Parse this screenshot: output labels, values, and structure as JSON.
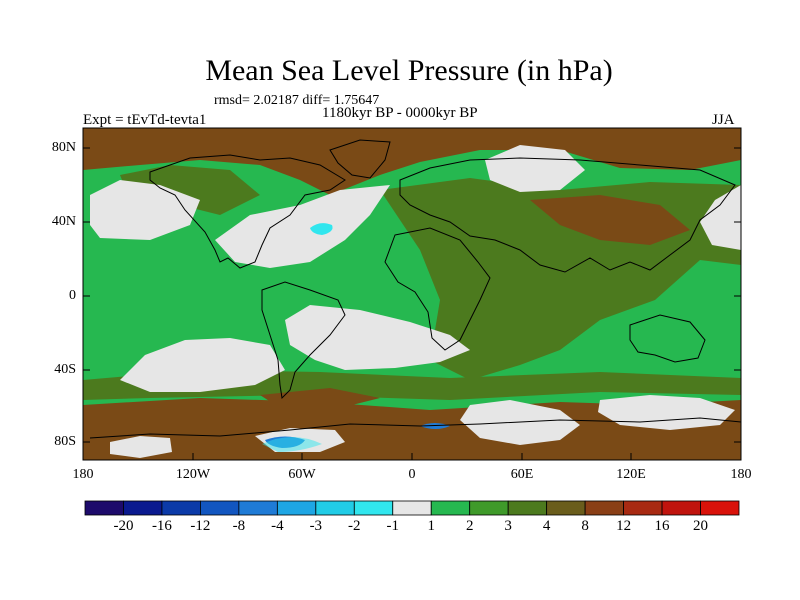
{
  "title": "Mean Sea Level Pressure (in hPa)",
  "stats_text": "rmsd= 2.02187 diff= 1.75647",
  "period": "1180kyr BP - 0000kyr BP",
  "experiment": "Expt = tEvTd-tevta1",
  "season": "JJA",
  "lat_ticks": [
    "80N",
    "40N",
    "0",
    "40S",
    "80S"
  ],
  "lon_ticks": [
    "180",
    "120W",
    "60W",
    "0",
    "60E",
    "120E",
    "180"
  ],
  "colorbar": {
    "labels": [
      "-20",
      "-16",
      "-12",
      "-8",
      "-4",
      "-3",
      "-2",
      "-1",
      "1",
      "2",
      "3",
      "4",
      "8",
      "12",
      "16",
      "20"
    ],
    "colors": [
      "#1d0a6b",
      "#0a1a8f",
      "#0b3aa8",
      "#1256c0",
      "#1f7bd6",
      "#1ea6e4",
      "#21cce6",
      "#31e6ee",
      "#e6e6e6",
      "#26b850",
      "#3f9a2a",
      "#4c7a1e",
      "#6a5d1c",
      "#8a3f16",
      "#a82a12",
      "#c0140e",
      "#d9120a"
    ]
  },
  "colors": {
    "base_green": "#26b850",
    "olive": "#4c7a1e",
    "brown": "#7a4a16",
    "neutral": "#e6e6e6",
    "cyan": "#31e6ee",
    "blue": "#1f7bd6"
  }
}
